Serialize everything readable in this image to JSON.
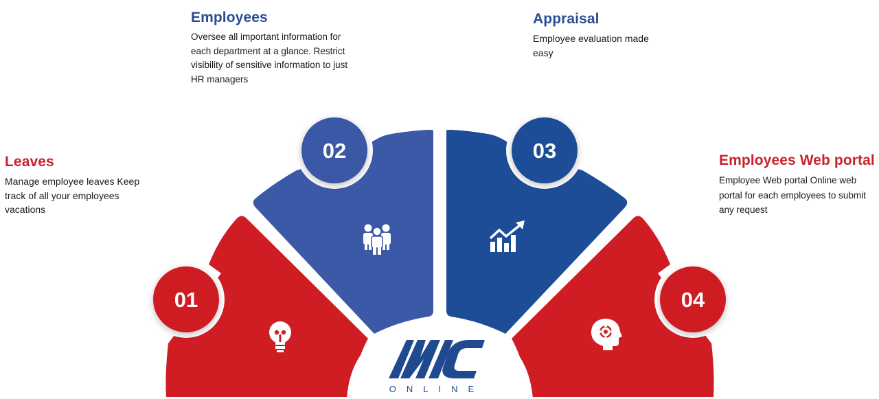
{
  "colors": {
    "red": "#cf1d23",
    "blue_light": "#3b59a6",
    "blue_dark": "#1d4d96",
    "title_red": "#c8232b",
    "title_blue": "#2a4d95"
  },
  "segments": [
    {
      "number": "01",
      "title": "Leaves",
      "description": "Manage employee leaves Keep track of all your employees vacations",
      "icon": "lightbulb-icon",
      "color": "red"
    },
    {
      "number": "02",
      "title": "Employees",
      "description": "Oversee all important information for each department at a glance. Restrict visibility of sensitive information to just HR managers",
      "icon": "people-group-icon",
      "color": "blue_light"
    },
    {
      "number": "03",
      "title": "Appraisal",
      "description": "Employee evaluation made easy",
      "icon": "growth-chart-icon",
      "color": "blue_dark"
    },
    {
      "number": "04",
      "title": "Employees Web portal",
      "description": "Employee Web portal Online web portal for each employees to submit any request",
      "icon": "gear-head-icon",
      "color": "red"
    }
  ],
  "logo": {
    "text": "MC",
    "subtext": "ONLINE"
  }
}
